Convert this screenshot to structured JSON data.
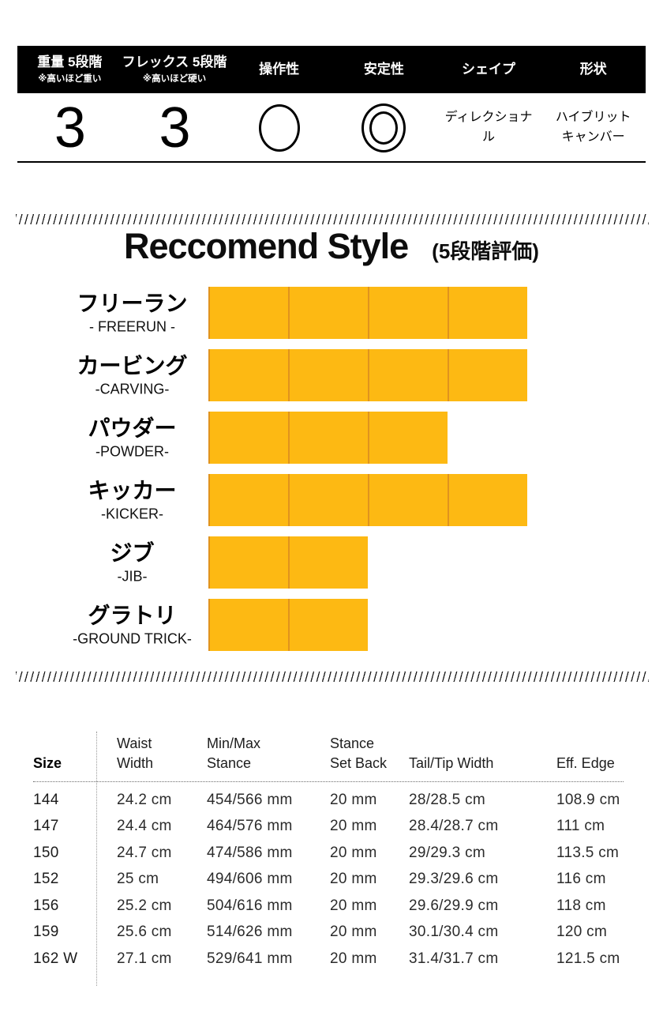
{
  "colors": {
    "header_bg": "#000000"
  },
  "spec_table": {
    "columns": [
      {
        "label": "重量 5段階",
        "note": "※高いほど重い"
      },
      {
        "label": "フレックス 5段階",
        "note": "※高いほど硬い"
      },
      {
        "label": "操作性"
      },
      {
        "label": "安定性"
      },
      {
        "label": "シェイプ"
      },
      {
        "label": "形状"
      }
    ],
    "values": {
      "weight": "3",
      "flex": "3",
      "handling_icon": "single-circle",
      "stability_icon": "double-circle",
      "shape": "ディレクショナル",
      "profile": "ハイブリットキャンバー"
    }
  },
  "style_section": {
    "title": "Reccomend Style",
    "subtitle": "(5段階評価)"
  },
  "chart_data": {
    "type": "bar",
    "title": "Reccomend Style",
    "subtitle": "(5段階評価)",
    "max_rating": 5,
    "categories": [
      "フリーラン",
      "カービング",
      "パウダー",
      "キッカー",
      "ジブ",
      "グラトリ"
    ],
    "subcategories": [
      "- FREERUN -",
      "-CARVING-",
      "-POWDER-",
      "-KICKER-",
      "-JIB-",
      "-GROUND TRICK-"
    ],
    "values": [
      4,
      4,
      3,
      4,
      2,
      2
    ],
    "bar_color": "#FDB913",
    "bar_divider_color": "#E0931E",
    "orientation": "horizontal",
    "grid": false,
    "legend": false
  },
  "size_table": {
    "columns": [
      "Size",
      "Waist\nWidth",
      "Min/Max\nStance",
      "Stance\nSet Back",
      "Tail/Tip Width",
      "Eff. Edge"
    ],
    "rows": [
      [
        "144",
        "24.2 cm",
        "454/566 mm",
        "20 mm",
        "28/28.5 cm",
        "108.9 cm"
      ],
      [
        "147",
        "24.4 cm",
        "464/576 mm",
        "20 mm",
        "28.4/28.7 cm",
        "111 cm"
      ],
      [
        "150",
        "24.7 cm",
        "474/586 mm",
        "20 mm",
        "29/29.3 cm",
        "113.5 cm"
      ],
      [
        "152",
        "25 cm",
        "494/606 mm",
        "20 mm",
        "29.3/29.6 cm",
        "116 cm"
      ],
      [
        "156",
        "25.2 cm",
        "504/616 mm",
        "20 mm",
        "29.6/29.9 cm",
        "118 cm"
      ],
      [
        "159",
        "25.6 cm",
        "514/626 mm",
        "20 mm",
        "30.1/30.4 cm",
        "120 cm"
      ],
      [
        "162 W",
        "27.1 cm",
        "529/641 mm",
        "20 mm",
        "31.4/31.7 cm",
        "121.5 cm"
      ]
    ]
  }
}
